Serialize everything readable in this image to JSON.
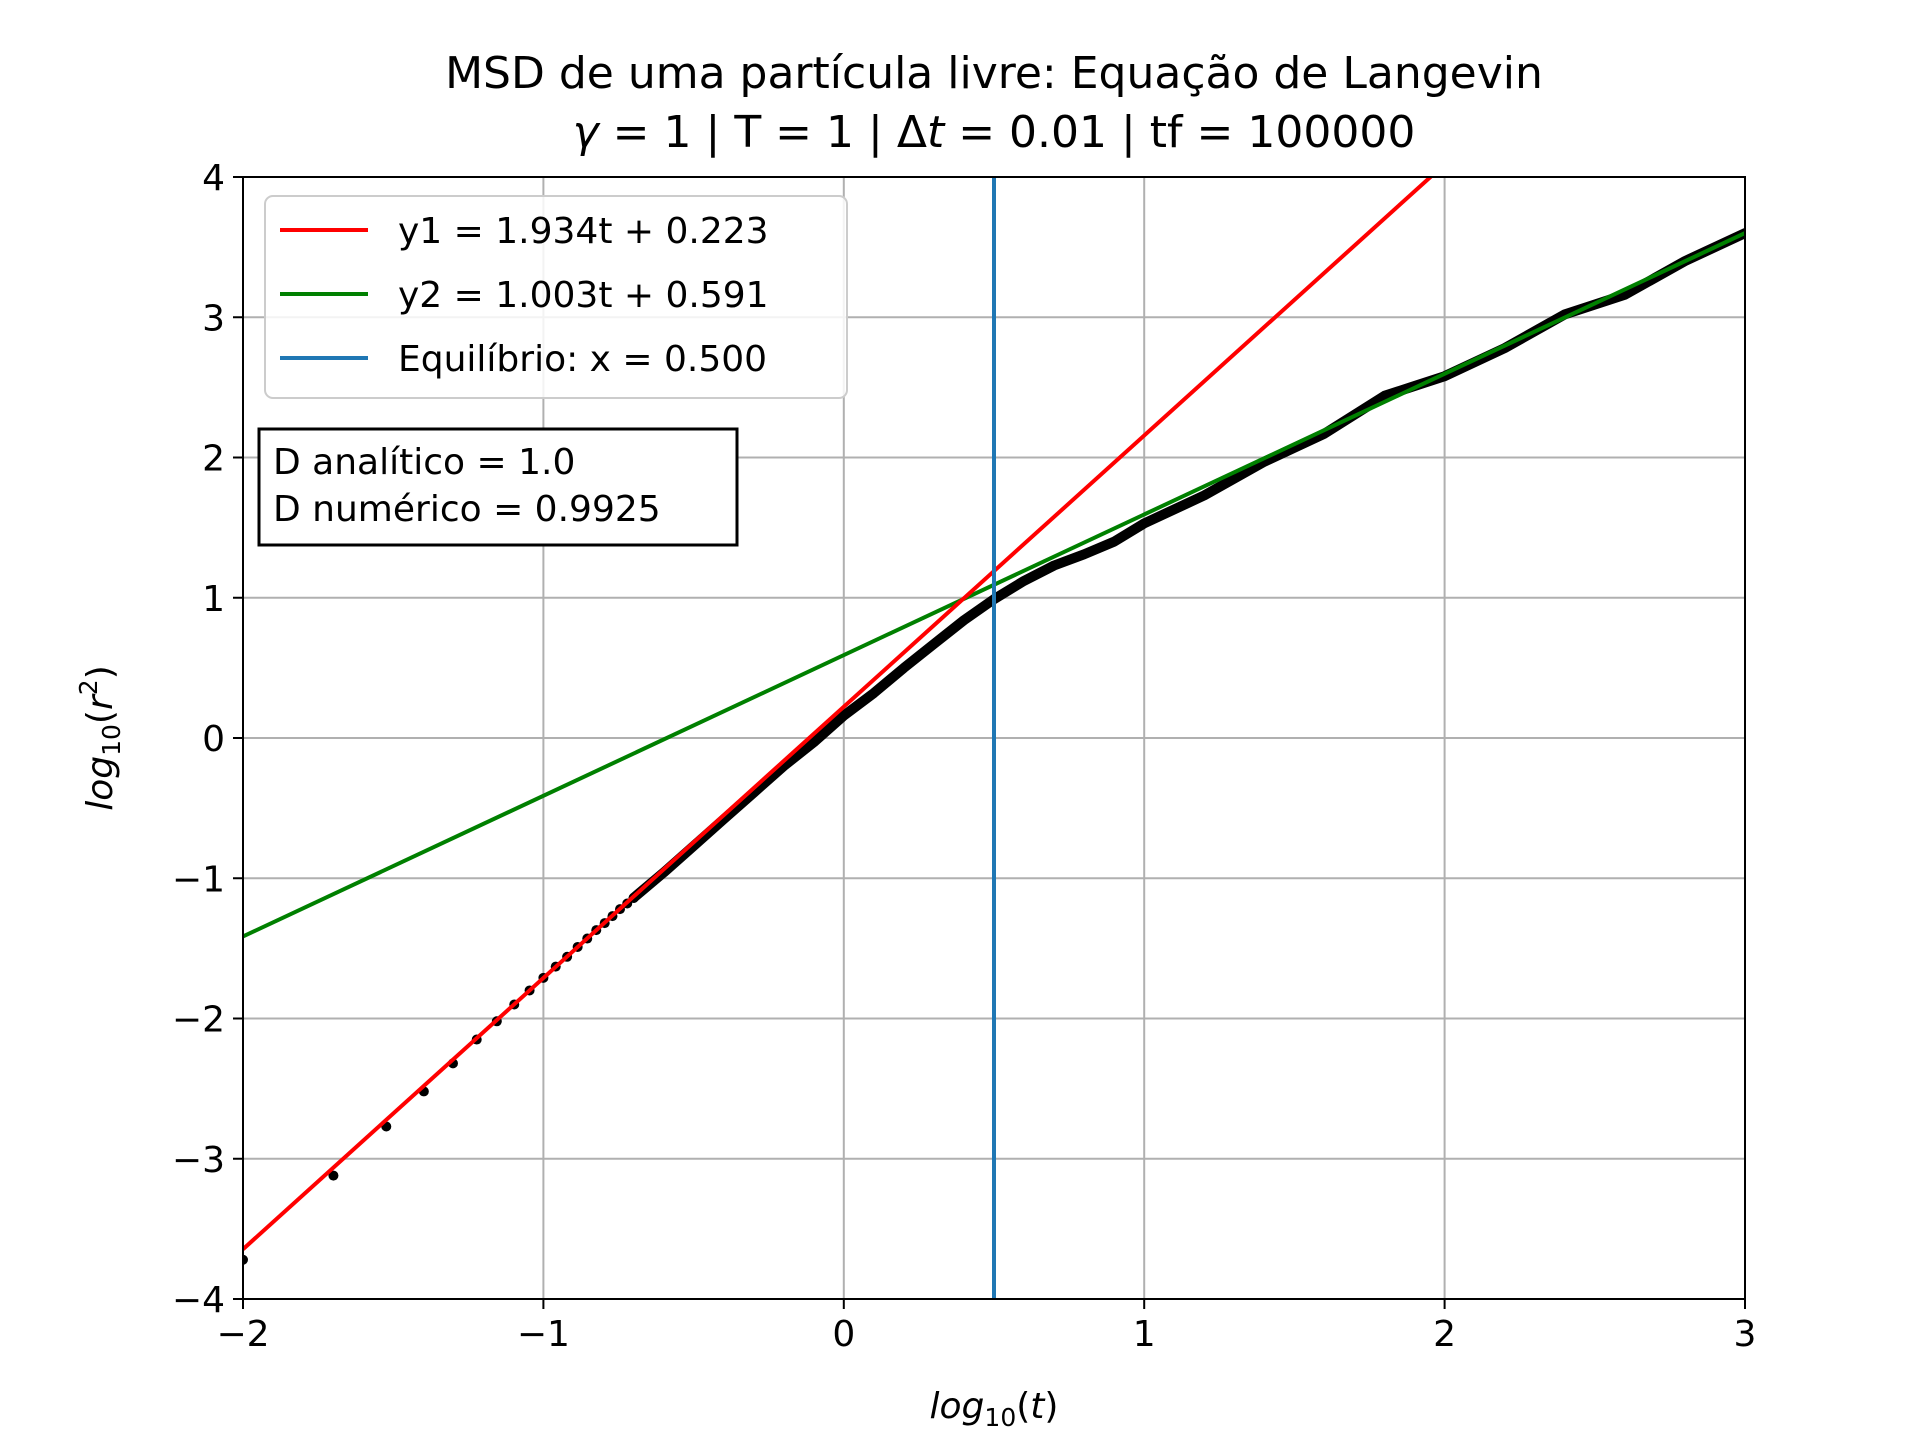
{
  "chart_data": {
    "type": "line",
    "title": "MSD de uma partícula livre: Equação de Langevin",
    "subtitle_parts": {
      "gamma": "γ",
      "middle": " = 1 | T = 1 | Δ",
      "t": "t",
      "end": " = 0.01 | tf = 100000"
    },
    "xlabel": {
      "prefix": "log",
      "sub": "10",
      "arg": "(t)"
    },
    "ylabel": {
      "prefix": "log",
      "sub": "10",
      "arg_open": "(r",
      "sup": "2",
      "arg_close": ")"
    },
    "xlim": [
      -2,
      3
    ],
    "ylim": [
      -4,
      4
    ],
    "xticks": [
      -2,
      -1,
      0,
      1,
      2,
      3
    ],
    "yticks": [
      -4,
      -3,
      -2,
      -1,
      0,
      1,
      2,
      3,
      4
    ],
    "xtick_labels": [
      "−2",
      "−1",
      "0",
      "1",
      "2",
      "3"
    ],
    "ytick_labels": [
      "−4",
      "−3",
      "−2",
      "−1",
      "0",
      "1",
      "2",
      "3",
      "4"
    ],
    "grid": true,
    "legend_position": "top-left",
    "series": [
      {
        "name": "y1 = 1.934t + 0.223",
        "kind": "fit-line",
        "slope": 1.934,
        "intercept": 0.223,
        "color": "#ff0000"
      },
      {
        "name": "y2 = 1.003t + 0.591",
        "kind": "fit-line",
        "slope": 1.003,
        "intercept": 0.591,
        "color": "#008000"
      },
      {
        "name": "Equilíbrio: x = 0.500",
        "kind": "vline",
        "x": 0.5,
        "color": "#1f77b4"
      }
    ],
    "data_points": {
      "name": "MSD numérico",
      "color": "#000000",
      "sparse_x": [
        -2.0,
        -1.699,
        -1.523,
        -1.398,
        -1.301,
        -1.222,
        -1.155,
        -1.097,
        -1.046,
        -1.0,
        -0.959,
        -0.921,
        -0.886,
        -0.854,
        -0.824,
        -0.796,
        -0.77,
        -0.745,
        -0.721,
        -0.699
      ],
      "sparse_y": [
        -3.72,
        -3.12,
        -2.77,
        -2.52,
        -2.32,
        -2.15,
        -2.02,
        -1.9,
        -1.8,
        -1.71,
        -1.63,
        -1.56,
        -1.49,
        -1.43,
        -1.37,
        -1.32,
        -1.27,
        -1.22,
        -1.18,
        -1.14
      ],
      "curve": [
        [
          -0.7,
          -1.14
        ],
        [
          -0.6,
          -0.96
        ],
        [
          -0.5,
          -0.77
        ],
        [
          -0.4,
          -0.58
        ],
        [
          -0.3,
          -0.39
        ],
        [
          -0.2,
          -0.2
        ],
        [
          -0.1,
          -0.03
        ],
        [
          0.0,
          0.16
        ],
        [
          0.1,
          0.32
        ],
        [
          0.2,
          0.5
        ],
        [
          0.3,
          0.67
        ],
        [
          0.4,
          0.84
        ],
        [
          0.5,
          0.99
        ],
        [
          0.6,
          1.12
        ],
        [
          0.7,
          1.23
        ],
        [
          0.8,
          1.31
        ],
        [
          0.9,
          1.4
        ],
        [
          1.0,
          1.53
        ],
        [
          1.2,
          1.73
        ],
        [
          1.4,
          1.97
        ],
        [
          1.6,
          2.17
        ],
        [
          1.8,
          2.44
        ],
        [
          2.0,
          2.58
        ],
        [
          2.2,
          2.78
        ],
        [
          2.4,
          3.02
        ],
        [
          2.6,
          3.16
        ],
        [
          2.8,
          3.4
        ],
        [
          3.0,
          3.6
        ]
      ]
    },
    "annotation": {
      "line1": "D analítico = 1.0",
      "line2": "D numérico = 0.9925"
    }
  }
}
